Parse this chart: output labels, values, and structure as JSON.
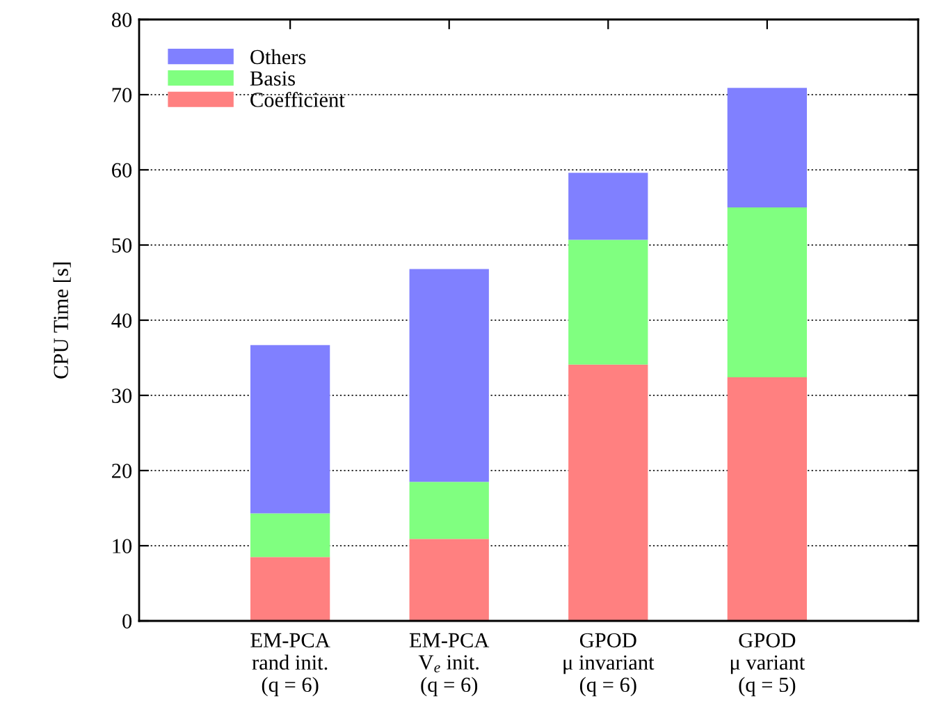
{
  "chart_data": {
    "type": "bar",
    "stacked": true,
    "ylabel": "CPU Time [s]",
    "categories": [
      "EM-PCA\nrand init.\n(q = 6)",
      "EM-PCA\nV$_{e}$ init.\n(q = 6)",
      "GPOD\nμ invariant\n(q = 6)",
      "GPOD\nμ variant\n(q = 5)"
    ],
    "series": [
      {
        "name": "Coefficient",
        "color": "#ff8080",
        "values": [
          8.5,
          10.9,
          34.1,
          32.4
        ]
      },
      {
        "name": "Basis",
        "color": "#80ff80",
        "values": [
          5.8,
          7.6,
          16.6,
          22.6
        ]
      },
      {
        "name": "Others",
        "color": "#8080ff",
        "values": [
          22.4,
          28.3,
          8.9,
          15.9
        ]
      }
    ],
    "ylim": [
      0,
      80
    ],
    "yticks": [
      0,
      10,
      20,
      30,
      40,
      50,
      60,
      70,
      80
    ],
    "grid": "y",
    "legend": "top left"
  }
}
